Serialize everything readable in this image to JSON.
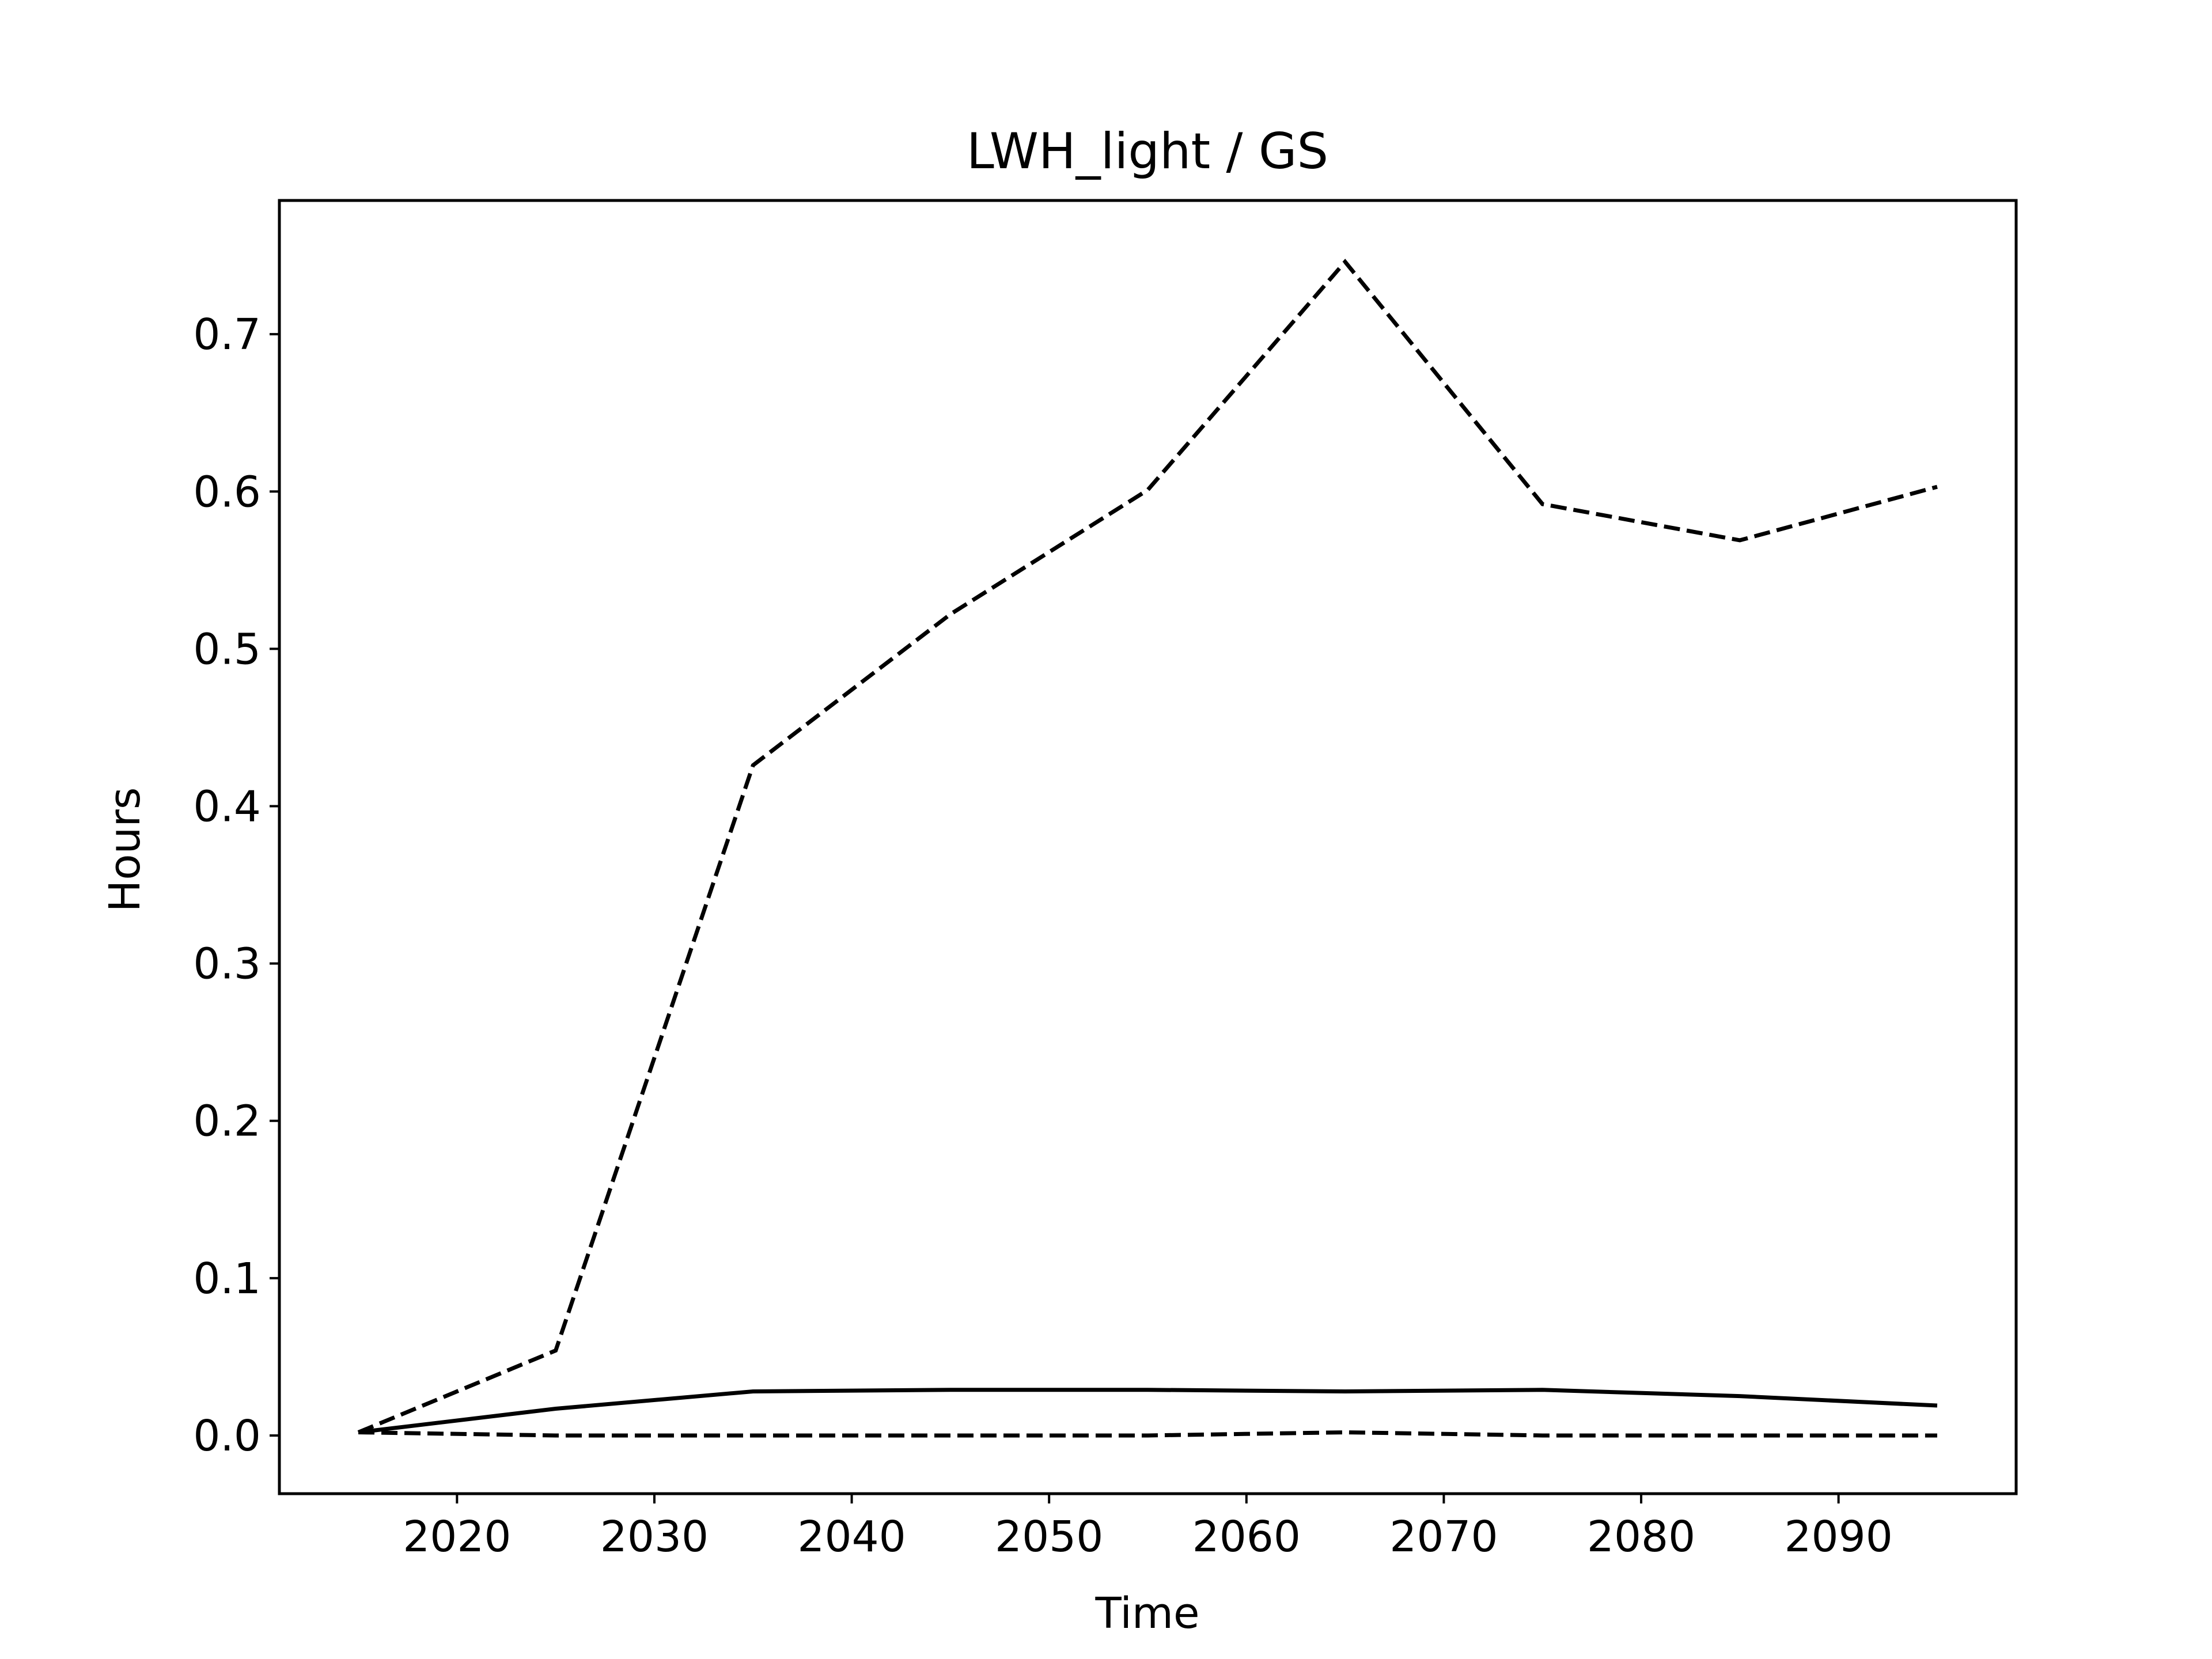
{
  "chart_data": {
    "type": "line",
    "title": "LWH_light / GS",
    "xlabel": "Time",
    "ylabel": "Hours",
    "xlim": [
      2011,
      2099
    ],
    "ylim": [
      -0.037,
      0.785
    ],
    "x_ticks": [
      "2020",
      "2030",
      "2040",
      "2050",
      "2060",
      "2070",
      "2080",
      "2090"
    ],
    "y_ticks": [
      "0.0",
      "0.1",
      "0.2",
      "0.3",
      "0.4",
      "0.5",
      "0.6",
      "0.7"
    ],
    "grid": false,
    "legend": "none",
    "colors": {
      "line": "#000000",
      "background": "#ffffff"
    },
    "x": [
      2015,
      2025,
      2035,
      2045,
      2055,
      2065,
      2075,
      2085,
      2095
    ],
    "series": [
      {
        "style": "dashed",
        "values": [
          0.002,
          0.054,
          0.426,
          0.522,
          0.601,
          0.746,
          0.592,
          0.569,
          0.603
        ]
      },
      {
        "style": "solid",
        "values": [
          0.002,
          0.017,
          0.028,
          0.029,
          0.029,
          0.028,
          0.029,
          0.025,
          0.019
        ]
      },
      {
        "style": "dashed",
        "values": [
          0.002,
          0.0,
          0.0,
          0.0,
          0.0,
          0.002,
          0.0,
          0.0,
          0.0
        ]
      }
    ]
  }
}
